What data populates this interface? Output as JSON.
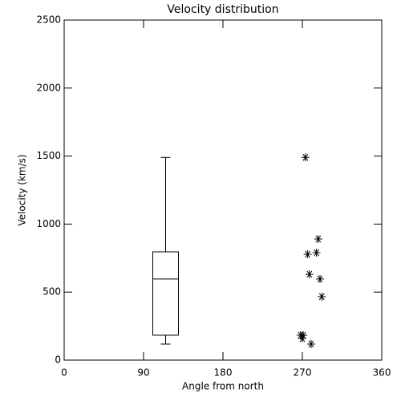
{
  "chart_data": {
    "type": "box",
    "title": "Velocity distribution",
    "xlabel": "Angle from north",
    "ylabel": "Velocity (km/s)",
    "xlim": [
      0,
      360
    ],
    "xticks": [
      0,
      90,
      180,
      270,
      360
    ],
    "ylim": [
      0,
      2500
    ],
    "yticks": [
      0,
      500,
      1000,
      1500,
      2000,
      2500
    ],
    "color": "#000000",
    "box": {
      "x": 115,
      "min": 118,
      "q1": 183,
      "median": 596,
      "q3": 796,
      "max": 1490
    },
    "series": [
      {
        "type": "scatter",
        "marker": "asterisk",
        "color": "#000000",
        "x": [
          273.5,
          288,
          276,
          286,
          278,
          290,
          292,
          268,
          271,
          270,
          280
        ],
        "values": [
          1490,
          890,
          778,
          790,
          631,
          596,
          466,
          183,
          183,
          159,
          118
        ]
      }
    ]
  }
}
